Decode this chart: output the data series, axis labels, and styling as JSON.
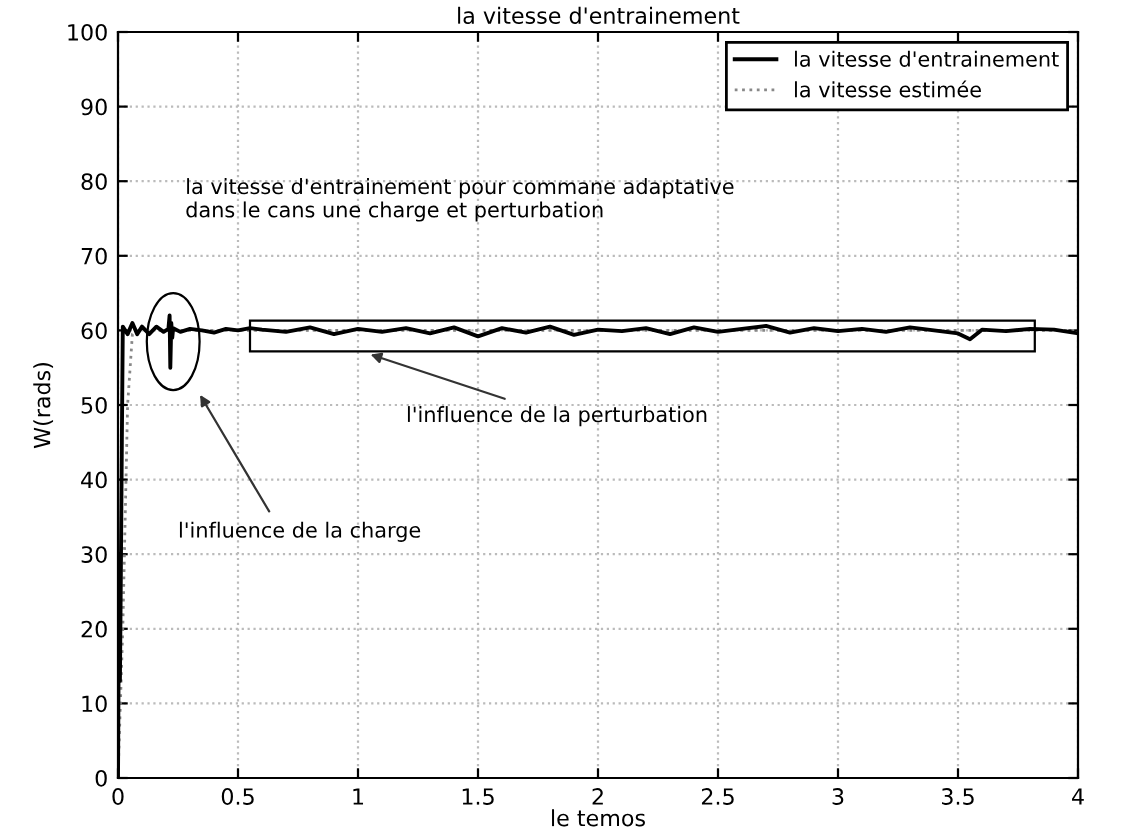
{
  "chart_data": {
    "type": "line",
    "title": "la vitesse d'entrainement",
    "xlabel": "le temos",
    "ylabel": "W(rads)",
    "xlim": [
      0,
      4
    ],
    "ylim": [
      0,
      100
    ],
    "xticks": [
      0,
      0.5,
      1,
      1.5,
      2,
      2.5,
      3,
      3.5,
      4
    ],
    "yticks": [
      0,
      10,
      20,
      30,
      40,
      50,
      60,
      70,
      80,
      90,
      100
    ],
    "grid": true,
    "legend": "top right",
    "series": [
      {
        "name": "la vitesse d'entrainement",
        "color": "#000000",
        "line_style": "solid",
        "x": [
          0,
          0.005,
          0.008,
          0.012,
          0.016,
          0.02,
          0.04,
          0.06,
          0.08,
          0.1,
          0.13,
          0.16,
          0.19,
          0.21,
          0.215,
          0.218,
          0.222,
          0.226,
          0.23,
          0.26,
          0.3,
          0.35,
          0.4,
          0.45,
          0.5,
          0.55,
          0.6,
          0.7,
          0.8,
          0.9,
          1.0,
          1.1,
          1.2,
          1.3,
          1.4,
          1.5,
          1.6,
          1.7,
          1.8,
          1.9,
          2.0,
          2.1,
          2.2,
          2.3,
          2.4,
          2.5,
          2.6,
          2.7,
          2.8,
          2.9,
          3.0,
          3.1,
          3.2,
          3.3,
          3.4,
          3.5,
          3.55,
          3.6,
          3.7,
          3.8,
          3.9,
          4.0
        ],
        "values": [
          0,
          30,
          13,
          28,
          45,
          60.5,
          59.5,
          61,
          59.5,
          60.5,
          59.5,
          60.5,
          59.8,
          60.2,
          62,
          55,
          61,
          59,
          60.3,
          59.8,
          60.2,
          60,
          59.7,
          60.2,
          60,
          60.3,
          60.1,
          59.8,
          60.4,
          59.5,
          60.2,
          59.8,
          60.3,
          59.6,
          60.4,
          59.2,
          60.3,
          59.7,
          60.5,
          59.4,
          60.1,
          59.9,
          60.3,
          59.5,
          60.4,
          59.8,
          60.2,
          60.6,
          59.7,
          60.3,
          59.9,
          60.2,
          59.8,
          60.4,
          60,
          59.6,
          58.8,
          60.1,
          59.9,
          60.2,
          60.1,
          59.6
        ]
      },
      {
        "name": "la vitesse estimée",
        "color": "#888888",
        "line_style": "dotted",
        "x": [
          0,
          0.02,
          0.04,
          0.06,
          0.1,
          0.2,
          0.3,
          0.5,
          1.0,
          1.5,
          2.0,
          2.5,
          3.0,
          3.5,
          4.0
        ],
        "values": [
          0,
          20,
          50,
          59.5,
          60,
          60,
          60,
          60,
          60,
          60,
          60,
          60,
          60,
          60,
          60
        ]
      }
    ],
    "annotations": [
      "la vitesse d'entrainement pour commane adaptative\ndans le cans une charge et perturbation",
      "l'influence de la charge",
      "l'influence de la perturbation"
    ]
  }
}
